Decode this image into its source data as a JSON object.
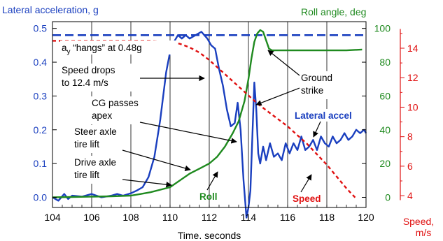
{
  "chart_data": {
    "type": "line",
    "title": "",
    "xlabel": "Time. seconds",
    "x_ticks": [
      "104",
      "106",
      "108",
      "110",
      "112",
      "114",
      "116",
      "118",
      "120"
    ],
    "xlim": [
      104,
      120
    ],
    "axes": {
      "left": {
        "label": "Lateral acceleration, g",
        "ticks": [
          "0.0",
          "0.1",
          "0.2",
          "0.3",
          "0.4",
          "0.5"
        ],
        "lim": [
          -0.03,
          0.52
        ],
        "color": "#1a3fbf"
      },
      "right_inner": {
        "label": "Roll angle, deg",
        "ticks": [
          "0",
          "20",
          "40",
          "60",
          "80",
          "100"
        ],
        "lim": [
          -6,
          104
        ],
        "color": "#1f8a1f"
      },
      "right_outer": {
        "label_line1": "Speed,",
        "label_line2": "m/s",
        "ticks": [
          "4",
          "6",
          "8",
          "10",
          "12",
          "14"
        ],
        "lim": [
          3.2,
          15.8
        ],
        "color": "#e01010"
      }
    },
    "grid": {
      "vertical_major": true
    },
    "reference_line": {
      "axis": "left",
      "value": 0.48,
      "label": "a",
      "label_sub": "y",
      "label_rest": " “hangs” at 0.48g"
    },
    "series": [
      {
        "name": "Lateral accel",
        "axis": "left",
        "color": "#1a3fbf",
        "x": [
          104.0,
          104.3,
          104.6,
          104.8,
          105.0,
          105.5,
          106.0,
          106.5,
          107.0,
          107.3,
          107.6,
          108.0,
          108.3,
          108.6,
          108.9,
          109.2,
          109.5,
          109.8,
          110.0,
          110.2,
          110.4,
          110.6,
          110.8,
          111.0,
          111.3,
          111.6,
          111.9,
          112.1,
          112.3,
          112.5,
          112.7,
          112.9,
          113.1,
          113.3,
          113.45,
          113.6,
          113.75,
          113.9,
          114.0,
          114.1,
          114.2,
          114.3,
          114.4,
          114.5,
          114.6,
          114.75,
          114.9,
          115.1,
          115.3,
          115.5,
          115.7,
          115.9,
          116.1,
          116.3,
          116.5,
          116.7,
          116.9,
          117.1,
          117.3,
          117.5,
          117.7,
          117.9,
          118.1,
          118.3,
          118.5,
          118.7,
          118.9,
          119.1,
          119.3,
          119.5,
          119.7,
          119.9,
          120.0
        ],
        "values": [
          0.0,
          -0.01,
          0.01,
          -0.005,
          0.005,
          0.002,
          0.01,
          0.0,
          0.005,
          0.01,
          0.005,
          0.012,
          0.02,
          0.03,
          0.06,
          0.12,
          0.23,
          0.37,
          0.43,
          0.46,
          0.48,
          0.47,
          0.48,
          0.47,
          0.48,
          0.49,
          0.47,
          0.45,
          0.44,
          0.38,
          0.33,
          0.26,
          0.21,
          0.22,
          0.28,
          0.2,
          0.05,
          -0.06,
          -0.03,
          0.02,
          0.18,
          0.34,
          0.26,
          0.13,
          0.1,
          0.15,
          0.11,
          0.16,
          0.12,
          0.13,
          0.11,
          0.16,
          0.13,
          0.16,
          0.14,
          0.18,
          0.14,
          0.15,
          0.17,
          0.14,
          0.18,
          0.16,
          0.15,
          0.18,
          0.16,
          0.17,
          0.19,
          0.17,
          0.18,
          0.2,
          0.19,
          0.2,
          0.19
        ]
      },
      {
        "name": "Roll",
        "axis": "right_inner",
        "color": "#1f8a1f",
        "x": [
          104.0,
          105.0,
          106.0,
          107.0,
          108.0,
          108.5,
          109.0,
          109.5,
          110.0,
          110.5,
          111.0,
          111.5,
          112.0,
          112.4,
          112.8,
          113.2,
          113.5,
          113.8,
          114.0,
          114.15,
          114.3,
          114.45,
          114.6,
          114.75,
          114.9,
          115.05,
          115.2,
          115.5,
          116.0,
          117.0,
          118.0,
          119.0,
          119.8
        ],
        "values": [
          0.0,
          0.2,
          0.4,
          0.6,
          1.0,
          2.0,
          3.0,
          4.5,
          6.0,
          10.0,
          14.0,
          17.0,
          20.0,
          24.0,
          30.0,
          38.0,
          45.0,
          57.0,
          70.0,
          82.0,
          92.0,
          97.0,
          99.0,
          98.0,
          93.0,
          88.0,
          87.0,
          87.0,
          87.0,
          87.0,
          87.0,
          87.0,
          87.5
        ]
      },
      {
        "name": "Speed",
        "axis": "right_outer",
        "color": "#e01010",
        "dashed": true,
        "x": [
          104.0,
          106.0,
          108.0,
          109.0,
          110.0,
          110.5,
          111.0,
          111.5,
          112.0,
          112.5,
          113.0,
          113.5,
          114.0,
          114.5,
          115.0,
          115.5,
          116.0,
          116.5,
          117.0,
          117.5,
          118.0,
          118.5,
          119.0,
          119.5
        ],
        "values": [
          14.5,
          14.5,
          14.5,
          14.5,
          14.4,
          14.3,
          14.05,
          13.7,
          13.2,
          12.6,
          12.0,
          11.4,
          10.8,
          10.2,
          9.7,
          9.2,
          8.7,
          8.1,
          7.5,
          6.8,
          6.1,
          5.3,
          4.5,
          3.8
        ]
      }
    ],
    "annotations": [
      {
        "id": "speed_drops",
        "lines": [
          "Speed drops",
          "to 12.4 m/s"
        ]
      },
      {
        "id": "cg_apex",
        "lines": [
          "CG passes",
          "apex"
        ]
      },
      {
        "id": "steer_axle",
        "lines": [
          "Steer axle",
          "tire lift"
        ]
      },
      {
        "id": "drive_axle",
        "lines": [
          "Drive axle",
          "tire lift"
        ]
      },
      {
        "id": "ground_strike",
        "lines": [
          "Ground",
          "strike"
        ]
      }
    ],
    "series_labels": {
      "lateral_accel": "Lateral accel",
      "roll": "Roll",
      "speed": "Speed"
    }
  },
  "colors": {
    "accel": "#1a3fbf",
    "roll": "#1f8a1f",
    "speed": "#e01010"
  }
}
